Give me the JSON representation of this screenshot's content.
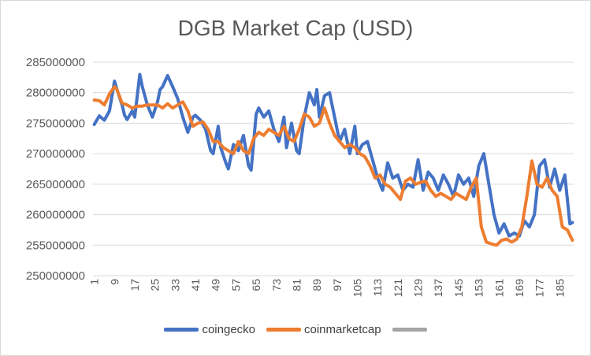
{
  "chart_data": {
    "type": "line",
    "title": "DGB Market Cap (USD)",
    "xlabel": "",
    "ylabel": "",
    "ylim": [
      250000000,
      285000000
    ],
    "y_ticks": [
      "285000000",
      "280000000",
      "275000000",
      "270000000",
      "265000000",
      "260000000",
      "255000000",
      "250000000"
    ],
    "x_ticks": [
      "1",
      "9",
      "17",
      "25",
      "33",
      "41",
      "49",
      "57",
      "65",
      "73",
      "81",
      "89",
      "97",
      "105",
      "113",
      "121",
      "129",
      "137",
      "145",
      "153",
      "161",
      "169",
      "177",
      "185"
    ],
    "x_count": 190,
    "grid": true,
    "legend_position": "bottom",
    "series": [
      {
        "name": "coingecko",
        "color": "#4472c4",
        "x": [
          1,
          3,
          5,
          7,
          9,
          10,
          12,
          13,
          14,
          16,
          17,
          19,
          20,
          22,
          24,
          26,
          27,
          28,
          30,
          32,
          34,
          36,
          38,
          40,
          41,
          43,
          45,
          47,
          48,
          50,
          51,
          53,
          54,
          56,
          58,
          60,
          62,
          63,
          65,
          66,
          68,
          70,
          72,
          74,
          76,
          77,
          79,
          81,
          82,
          84,
          86,
          88,
          89,
          90,
          92,
          94,
          96,
          98,
          100,
          102,
          104,
          105,
          107,
          109,
          111,
          113,
          115,
          117,
          119,
          121,
          123,
          125,
          127,
          129,
          131,
          133,
          135,
          137,
          139,
          141,
          143,
          145,
          147,
          149,
          151,
          153,
          155,
          157,
          159,
          161,
          163,
          165,
          167,
          169,
          171,
          173,
          175,
          177,
          179,
          181,
          183,
          185,
          187,
          189,
          190
        ],
        "values": [
          274800000,
          276200000,
          275500000,
          277000000,
          281900000,
          280500000,
          278000000,
          276300000,
          275600000,
          277000000,
          276000000,
          283000000,
          281000000,
          278000000,
          276000000,
          278500000,
          280500000,
          281000000,
          282800000,
          281000000,
          279000000,
          276000000,
          273500000,
          276000000,
          276300000,
          275500000,
          274000000,
          270500000,
          270000000,
          274500000,
          271000000,
          268500000,
          267500000,
          271500000,
          270500000,
          273000000,
          268000000,
          267300000,
          276500000,
          277500000,
          276000000,
          277000000,
          274000000,
          272000000,
          276000000,
          271000000,
          275000000,
          270500000,
          270000000,
          276000000,
          280000000,
          278000000,
          280500000,
          276000000,
          279500000,
          280000000,
          276000000,
          272000000,
          274000000,
          270000000,
          274500000,
          270000000,
          271500000,
          272000000,
          269000000,
          266000000,
          264000000,
          268500000,
          266000000,
          266500000,
          264000000,
          265000000,
          264500000,
          269000000,
          264000000,
          267000000,
          266000000,
          264000000,
          266500000,
          265000000,
          263000000,
          266500000,
          265000000,
          266000000,
          263000000,
          268000000,
          270000000,
          265000000,
          260000000,
          257000000,
          258500000,
          256500000,
          257000000,
          256500000,
          259000000,
          258000000,
          260000000,
          268000000,
          269000000,
          264500000,
          267500000,
          264000000,
          266500000,
          258500000,
          258700000
        ]
      },
      {
        "name": "coinmarketcap",
        "color": "#ed7d31",
        "x": [
          1,
          3,
          5,
          7,
          9,
          10,
          12,
          14,
          16,
          18,
          20,
          22,
          24,
          26,
          28,
          30,
          32,
          34,
          36,
          38,
          40,
          42,
          44,
          46,
          48,
          50,
          52,
          54,
          56,
          58,
          60,
          62,
          64,
          66,
          68,
          70,
          72,
          74,
          76,
          78,
          80,
          82,
          84,
          86,
          88,
          90,
          92,
          94,
          96,
          98,
          100,
          102,
          104,
          106,
          108,
          110,
          112,
          114,
          116,
          118,
          120,
          122,
          124,
          126,
          128,
          130,
          132,
          134,
          136,
          138,
          140,
          142,
          144,
          146,
          148,
          150,
          152,
          154,
          156,
          158,
          160,
          162,
          164,
          166,
          168,
          170,
          172,
          174,
          176,
          178,
          180,
          182,
          184,
          186,
          188,
          190
        ],
        "values": [
          278800000,
          278700000,
          278000000,
          279800000,
          281000000,
          280500000,
          278300000,
          278000000,
          277500000,
          277800000,
          277800000,
          278000000,
          278000000,
          278000000,
          277500000,
          278200000,
          277500000,
          278000000,
          278500000,
          277000000,
          274500000,
          275000000,
          275200000,
          274000000,
          272000000,
          272000000,
          271000000,
          270500000,
          270000000,
          272000000,
          270500000,
          270000000,
          272500000,
          273500000,
          273000000,
          274000000,
          273500000,
          273000000,
          274500000,
          272500000,
          272000000,
          274000000,
          276500000,
          276000000,
          274500000,
          275000000,
          277500000,
          275000000,
          273000000,
          272000000,
          271000000,
          271500000,
          271000000,
          270000000,
          269500000,
          268000000,
          266000000,
          266500000,
          265000000,
          264500000,
          263500000,
          262500000,
          265500000,
          266000000,
          265000000,
          265300000,
          265500000,
          264000000,
          263000000,
          263500000,
          263000000,
          262500000,
          263500000,
          263000000,
          262500000,
          264500000,
          266000000,
          258000000,
          255500000,
          255200000,
          255000000,
          255800000,
          256000000,
          255500000,
          256000000,
          258000000,
          263000000,
          268800000,
          265000000,
          264500000,
          266000000,
          264000000,
          263000000,
          258000000,
          257500000,
          255800000
        ]
      },
      {
        "name": "",
        "color": "#a5a5a5",
        "x": [],
        "values": []
      }
    ]
  }
}
